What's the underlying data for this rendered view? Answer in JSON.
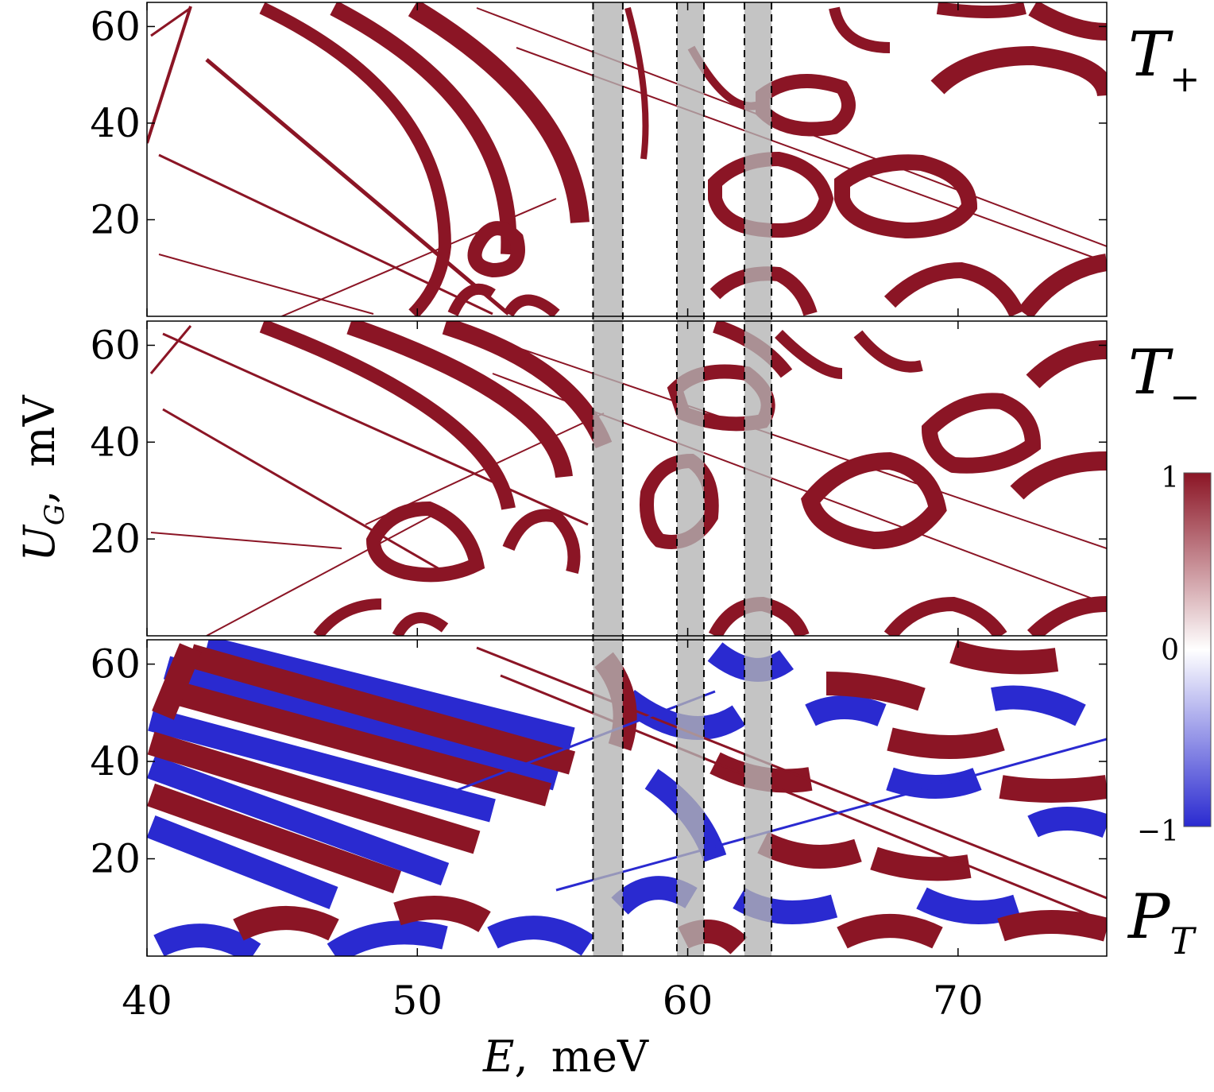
{
  "chart_data": {
    "type": "heatmap",
    "x": {
      "label": "E",
      "unit": "meV",
      "lim": [
        40,
        75.5
      ],
      "ticks": [
        40,
        50,
        60,
        70
      ]
    },
    "y": {
      "label": "U",
      "label_sub": "G",
      "unit": "mV",
      "lim": [
        0,
        65
      ],
      "ticks": [
        20,
        40,
        60
      ]
    },
    "panels": [
      {
        "label": "T",
        "label_sub": "+",
        "colormap": "white-to-red",
        "range": [
          0,
          1
        ]
      },
      {
        "label": "T",
        "label_sub": "−",
        "colormap": "white-to-red",
        "range": [
          0,
          1
        ]
      },
      {
        "label": "P",
        "label_sub": "T",
        "colormap": "blue-white-red",
        "range": [
          -1,
          1
        ]
      }
    ],
    "shaded_bands": [
      [
        56.5,
        57.6
      ],
      [
        59.6,
        60.6
      ],
      [
        62.1,
        63.1
      ]
    ],
    "colorbar": {
      "min": -1,
      "max": 1,
      "ticks": [
        "1",
        "0",
        "−1"
      ]
    },
    "colors": {
      "high": "#8b1525",
      "mid": "#ffffff",
      "low": "#2a2ad0",
      "band": "#b4b4b4"
    }
  }
}
